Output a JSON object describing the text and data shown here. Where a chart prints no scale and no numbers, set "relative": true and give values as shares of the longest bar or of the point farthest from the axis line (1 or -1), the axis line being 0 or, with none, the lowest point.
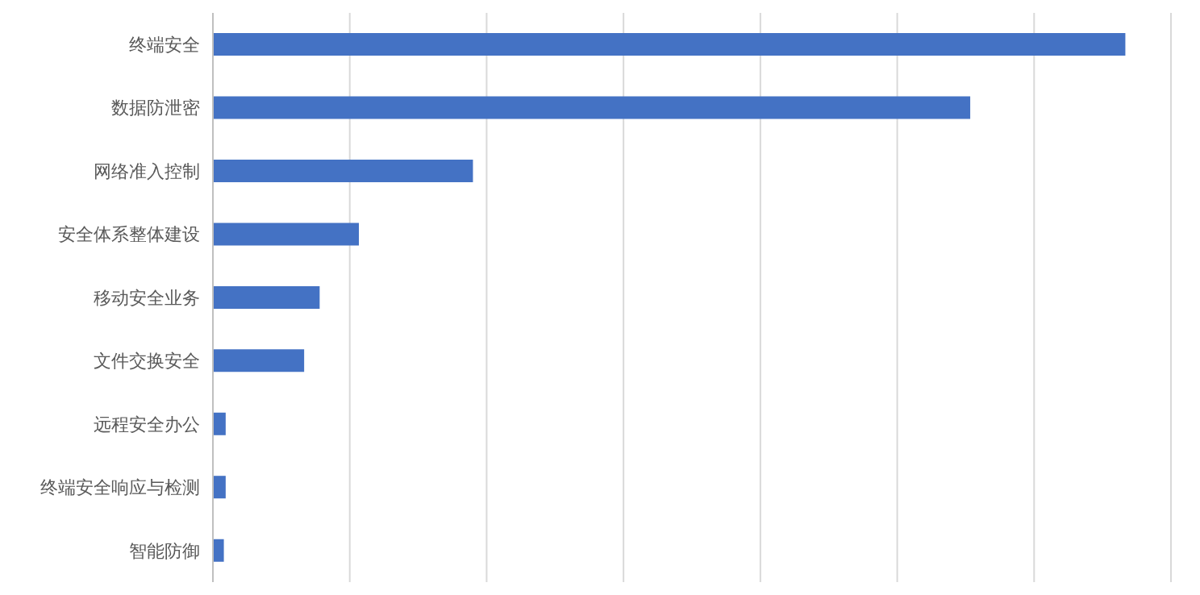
{
  "chart_data": {
    "type": "bar",
    "orientation": "horizontal",
    "relative": true,
    "grid": "x",
    "categories": [
      "终端安全",
      "数据防泄密",
      "网络准入控制",
      "安全体系整体建设",
      "移动安全业务",
      "文件交换安全",
      "远程安全办公",
      "终端安全响应与检测",
      "智能防御"
    ],
    "values": [
      1,
      0.83,
      0.285,
      0.16,
      0.117,
      0.1,
      0.014,
      0.014,
      0.012
    ],
    "color": "#4472c4"
  }
}
